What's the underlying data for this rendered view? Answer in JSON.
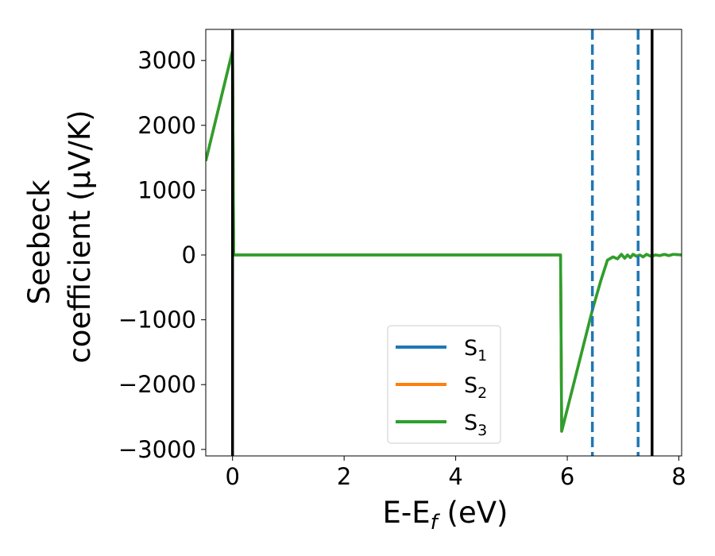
{
  "chart_data": {
    "type": "line",
    "xlabel": "E-E_f (eV)",
    "xlabel_parts": [
      "E-E",
      "f",
      " (eV)"
    ],
    "ylabel": "Seebeck coefficient (μV/K)",
    "ylabel_lines": [
      "Seebeck",
      "coefficient  (μV/K)"
    ],
    "xlim": [
      -0.48,
      8.05
    ],
    "ylim": [
      -3100,
      3480
    ],
    "xticks": [
      0,
      2,
      4,
      6,
      8
    ],
    "yticks": [
      3000,
      2000,
      1000,
      0,
      -1000,
      -2000,
      -3000
    ],
    "xtick_labels": [
      "0",
      "2",
      "4",
      "6",
      "8"
    ],
    "ytick_labels": [
      "3000",
      "2000",
      "1000",
      "0",
      "−1000",
      "−2000",
      "−3000"
    ],
    "grid": false,
    "legend_position": "lower-center",
    "vlines": [
      {
        "x": 0.0,
        "style": "solid",
        "color": "#000000"
      },
      {
        "x": 6.45,
        "style": "dashed",
        "color": "#1f77b4"
      },
      {
        "x": 7.27,
        "style": "dashed",
        "color": "#1f77b4"
      },
      {
        "x": 7.52,
        "style": "solid",
        "color": "#000000"
      }
    ],
    "series": [
      {
        "name": "S1",
        "label_main": "S",
        "label_sub": "1",
        "color": "#1f77b4",
        "x": [
          -0.48,
          0.0,
          0.02,
          5.88,
          5.9,
          6.45,
          6.6,
          6.72,
          6.82,
          6.9,
          6.97,
          7.03,
          7.08,
          7.13,
          7.18,
          7.24,
          7.3,
          7.36,
          7.42,
          7.5,
          7.58,
          7.66,
          7.74,
          7.82,
          7.9,
          8.05
        ],
        "y": [
          1450,
          3150,
          0,
          0,
          -2720,
          -850,
          -400,
          -80,
          -30,
          -60,
          10,
          -50,
          0,
          -40,
          10,
          -20,
          0,
          -30,
          10,
          -20,
          0,
          -10,
          10,
          -10,
          10,
          0
        ]
      },
      {
        "name": "S2",
        "label_main": "S",
        "label_sub": "2",
        "color": "#ff7f0e",
        "x": [
          -0.48,
          0.0,
          0.02,
          5.88,
          5.9,
          6.45,
          6.6,
          6.72,
          6.82,
          6.9,
          6.97,
          7.03,
          7.08,
          7.13,
          7.18,
          7.24,
          7.3,
          7.36,
          7.42,
          7.5,
          7.58,
          7.66,
          7.74,
          7.82,
          7.9,
          8.05
        ],
        "y": [
          1450,
          3150,
          0,
          0,
          -2720,
          -850,
          -400,
          -80,
          -30,
          -60,
          10,
          -50,
          0,
          -40,
          10,
          -20,
          0,
          -30,
          10,
          -20,
          0,
          -10,
          10,
          -10,
          10,
          0
        ]
      },
      {
        "name": "S3",
        "label_main": "S",
        "label_sub": "3",
        "color": "#2ca02c",
        "x": [
          -0.48,
          0.0,
          0.02,
          5.88,
          5.9,
          6.45,
          6.6,
          6.72,
          6.82,
          6.9,
          6.97,
          7.03,
          7.08,
          7.13,
          7.18,
          7.24,
          7.3,
          7.36,
          7.42,
          7.5,
          7.58,
          7.66,
          7.74,
          7.82,
          7.9,
          8.05
        ],
        "y": [
          1450,
          3150,
          0,
          0,
          -2720,
          -850,
          -400,
          -80,
          -30,
          -60,
          10,
          -50,
          0,
          -40,
          10,
          -20,
          0,
          -30,
          10,
          -20,
          0,
          -10,
          10,
          -10,
          10,
          0
        ]
      }
    ]
  }
}
